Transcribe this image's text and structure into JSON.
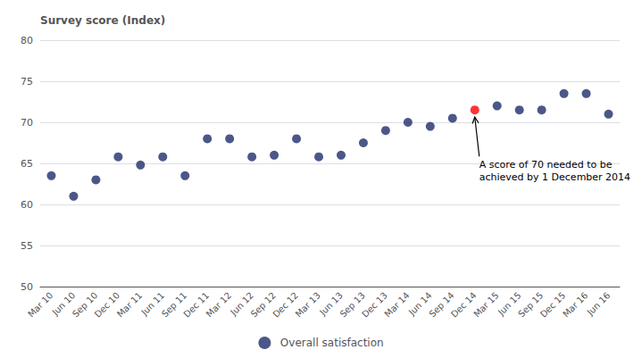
{
  "chart_data": {
    "type": "scatter",
    "ylabel": "Survey score (Index)",
    "categories": [
      "Mar 10",
      "Jun 10",
      "Sep 10",
      "Dec 10",
      "Mar 11",
      "Jun 11",
      "Sep 11",
      "Dec 11",
      "Mar 12",
      "Jun 12",
      "Sep 12",
      "Dec 12",
      "Mar 13",
      "Jun 13",
      "Sep 13",
      "Dec 13",
      "Mar 14",
      "Jun 14",
      "Sep 14",
      "Dec 14",
      "Mar 15",
      "Jun 15",
      "Sep 15",
      "Dec 15",
      "Mar 16",
      "Jun 16"
    ],
    "series": [
      {
        "name": "Overall satisfaction",
        "color": "#1f2d6b",
        "values": [
          63.5,
          61.0,
          63.0,
          65.8,
          64.8,
          65.8,
          63.5,
          68.0,
          68.0,
          65.8,
          66.0,
          68.0,
          65.8,
          66.0,
          67.5,
          69.0,
          70.0,
          69.5,
          70.5,
          71.5,
          72.0,
          71.5,
          71.5,
          73.5,
          73.5,
          71.0
        ],
        "colors": [
          "#1f2d6b",
          "#1f2d6b",
          "#1f2d6b",
          "#1f2d6b",
          "#1f2d6b",
          "#1f2d6b",
          "#1f2d6b",
          "#1f2d6b",
          "#1f2d6b",
          "#1f2d6b",
          "#1f2d6b",
          "#1f2d6b",
          "#1f2d6b",
          "#1f2d6b",
          "#1f2d6b",
          "#1f2d6b",
          "#1f2d6b",
          "#1f2d6b",
          "#1f2d6b",
          "#ff0000",
          "#1f2d6b",
          "#1f2d6b",
          "#1f2d6b",
          "#1f2d6b",
          "#1f2d6b",
          "#1f2d6b"
        ]
      }
    ],
    "ylim": [
      50,
      80
    ],
    "yticks": [
      50,
      55,
      60,
      65,
      70,
      75,
      80
    ],
    "grid": true,
    "legend": "bottom",
    "annotations": [
      {
        "text": "A score of 70 needed to be\nachieved by 1 December 2014",
        "category": "Dec 14"
      }
    ]
  }
}
